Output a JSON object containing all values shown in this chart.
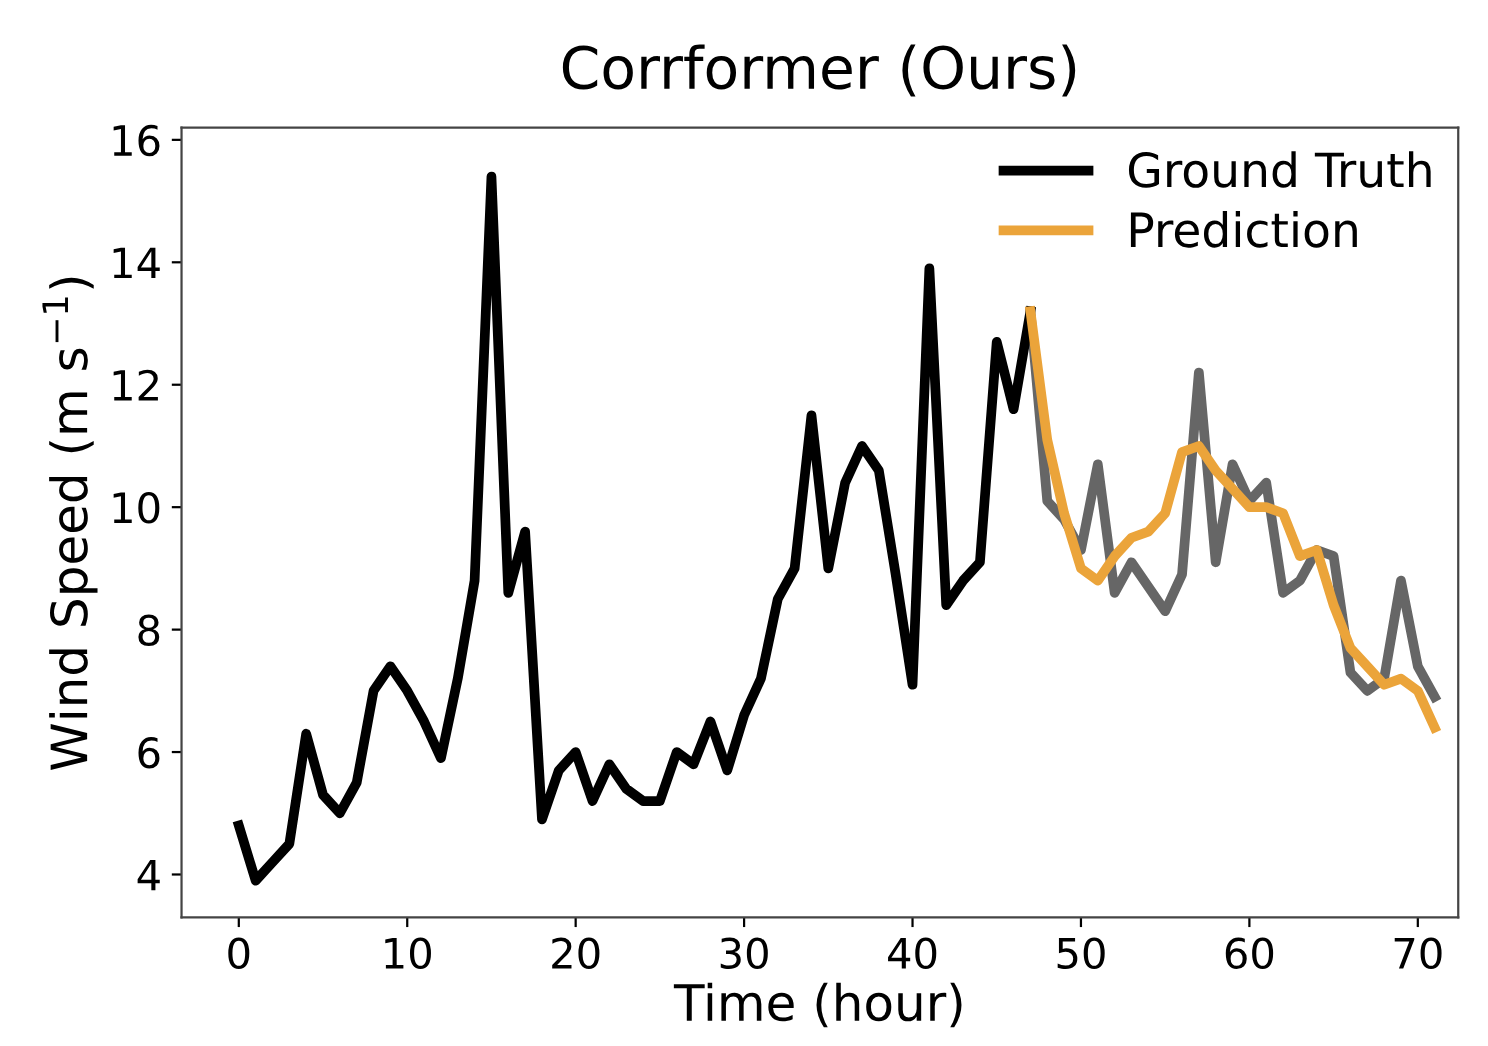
{
  "chart_data": {
    "type": "line",
    "title": "Corrformer (Ours)",
    "xlabel": "Time (hour)",
    "ylabel": "Wind Speed (m s$^{−1}$)",
    "xlim": [
      -3.4,
      72.4
    ],
    "ylim": [
      3.3,
      16.2
    ],
    "xticks": [
      0,
      10,
      20,
      30,
      40,
      50,
      60,
      70
    ],
    "yticks": [
      4,
      6,
      8,
      10,
      12,
      14,
      16
    ],
    "grid": false,
    "legend": "top right",
    "marker": "none",
    "line_style": "solid",
    "series": [
      {
        "name": "Ground Truth",
        "color": "#000000",
        "x": [
          0,
          1,
          2,
          3,
          4,
          5,
          6,
          7,
          8,
          9,
          10,
          11,
          12,
          13,
          14,
          15,
          16,
          17,
          18,
          19,
          20,
          21,
          22,
          23,
          24,
          25,
          26,
          27,
          28,
          29,
          30,
          31,
          32,
          33,
          34,
          35,
          36,
          37,
          38,
          39,
          40,
          41,
          42,
          43,
          44,
          45,
          46,
          47
        ],
        "values": [
          4.8,
          3.9,
          4.2,
          4.5,
          6.3,
          5.3,
          5.0,
          5.5,
          7.0,
          7.4,
          7.0,
          6.5,
          5.9,
          7.2,
          8.8,
          15.4,
          8.6,
          9.6,
          4.9,
          5.7,
          6.0,
          5.2,
          5.8,
          5.4,
          5.2,
          5.2,
          6.0,
          5.8,
          6.5,
          5.7,
          6.6,
          7.2,
          8.5,
          9.0,
          11.5,
          9.0,
          10.4,
          11.0,
          10.6,
          8.9,
          7.1,
          13.9,
          8.4,
          8.8,
          9.1,
          12.7,
          11.6,
          13.2
        ]
      },
      {
        "color": "#666666",
        "x": [
          47,
          48,
          49,
          50,
          51,
          52,
          53,
          54,
          55,
          56,
          57,
          58,
          59,
          60,
          61,
          62,
          63,
          64,
          65,
          66,
          67,
          68,
          69,
          70,
          71
        ],
        "values": [
          13.2,
          10.1,
          9.8,
          9.3,
          10.7,
          8.6,
          9.1,
          8.7,
          8.3,
          8.9,
          12.2,
          9.1,
          10.7,
          10.1,
          10.4,
          8.6,
          8.8,
          9.3,
          9.2,
          7.3,
          7.0,
          7.2,
          8.8,
          7.4,
          6.9
        ]
      },
      {
        "name": "Prediction",
        "color": "#eba43a",
        "x": [
          47,
          48,
          49,
          50,
          51,
          52,
          53,
          54,
          55,
          56,
          57,
          58,
          59,
          60,
          61,
          62,
          63,
          64,
          65,
          66,
          67,
          68,
          69,
          70,
          71
        ],
        "values": [
          13.2,
          11.1,
          9.9,
          9.0,
          8.8,
          9.2,
          9.5,
          9.6,
          9.9,
          10.9,
          11.0,
          10.6,
          10.3,
          10.0,
          10.0,
          9.9,
          9.2,
          9.3,
          8.4,
          7.7,
          7.4,
          7.1,
          7.2,
          7.0,
          6.4
        ]
      }
    ]
  }
}
